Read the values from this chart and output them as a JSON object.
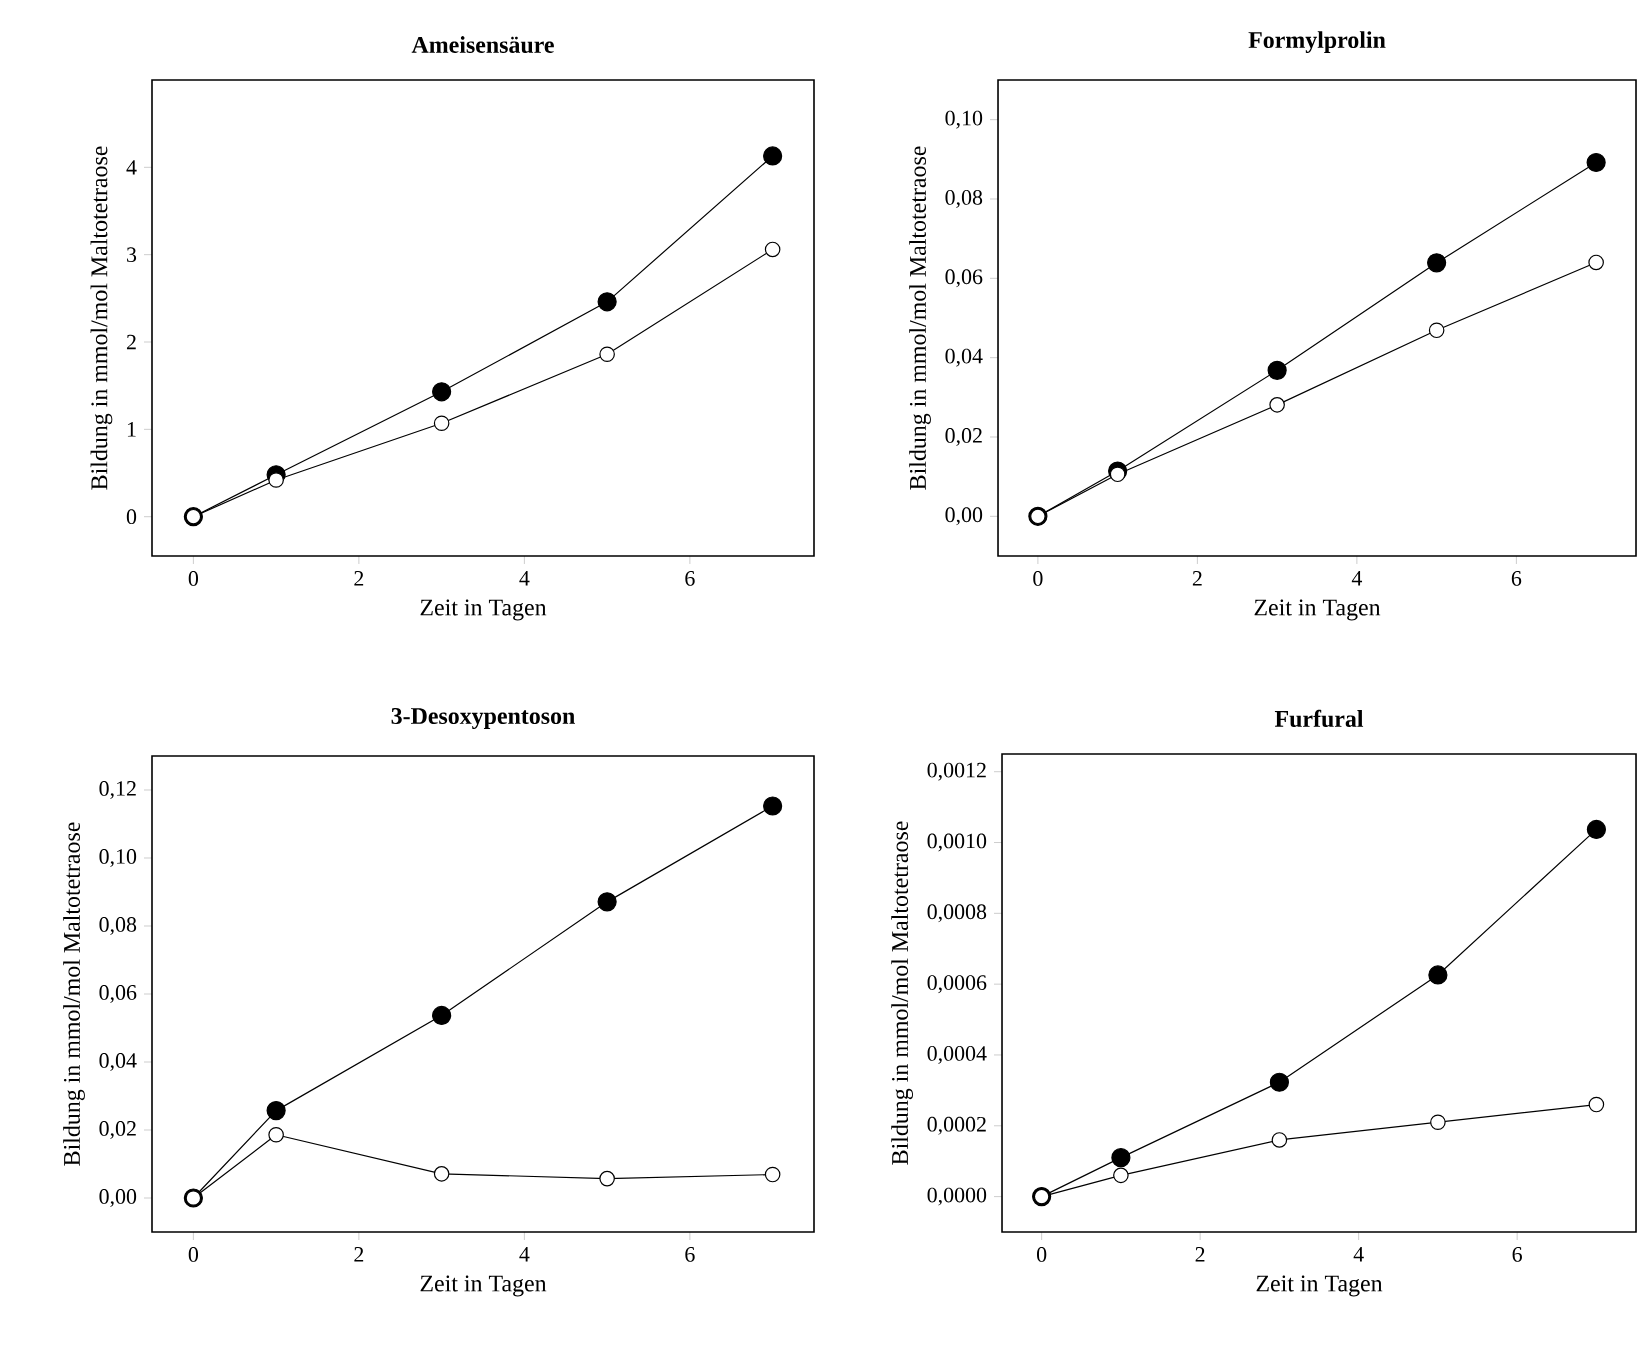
{
  "chart_data": [
    {
      "type": "line",
      "title": "Ameisensäure",
      "xlabel": "Zeit in Tagen",
      "ylabel": "Bildung in mmol/mol Maltotetraose",
      "x": [
        0,
        1,
        3,
        5,
        7
      ],
      "marker": "circle",
      "line_style": "solid",
      "series": [
        {
          "color": "#000000",
          "values": [
            0,
            0.48,
            1.43,
            2.46,
            4.13
          ]
        },
        {
          "color": "#ffffff",
          "values": [
            0,
            0.42,
            1.07,
            1.86,
            3.06
          ]
        }
      ],
      "xlim": [
        -0.5,
        7.5
      ],
      "ylim": [
        -0.45,
        5.0
      ],
      "xticks": [
        0,
        2,
        4,
        6
      ],
      "yticks": [
        0,
        1,
        2,
        3,
        4
      ]
    },
    {
      "type": "line",
      "title": "Formylprolin",
      "xlabel": "Zeit in Tagen",
      "ylabel": "Bildung in mmol/mol Maltotetraose",
      "x": [
        0,
        1,
        3,
        5,
        7
      ],
      "marker": "circle",
      "line_style": "solid",
      "series": [
        {
          "color": "#000000",
          "values": [
            0,
            0.0114,
            0.0368,
            0.0639,
            0.0892
          ]
        },
        {
          "color": "#ffffff",
          "values": [
            0,
            0.0106,
            0.0281,
            0.0469,
            0.064
          ]
        }
      ],
      "xlim": [
        -0.5,
        7.5
      ],
      "ylim": [
        -0.01,
        0.11
      ],
      "xticks": [
        0,
        2,
        4,
        6
      ],
      "yticks": [
        {
          "value": 0,
          "label": "0,00"
        },
        {
          "value": 0.02,
          "label": "0,02"
        },
        {
          "value": 0.04,
          "label": "0,04"
        },
        {
          "value": 0.06,
          "label": "0,06"
        },
        {
          "value": 0.08,
          "label": "0,08"
        },
        {
          "value": 0.1,
          "label": "0,10"
        }
      ]
    },
    {
      "type": "line",
      "title": "3-Desoxypentoson",
      "xlabel": "Zeit in Tagen",
      "ylabel": "Bildung in mmol/mol Maltotetraose",
      "x": [
        0,
        1,
        3,
        5,
        7
      ],
      "marker": "circle",
      "line_style": "solid",
      "series": [
        {
          "color": "#000000",
          "values": [
            0,
            0.0257,
            0.0537,
            0.0871,
            0.1153
          ]
        },
        {
          "color": "#ffffff",
          "values": [
            0,
            0.0186,
            0.0071,
            0.0057,
            0.0069
          ]
        }
      ],
      "xlim": [
        -0.5,
        7.5
      ],
      "ylim": [
        -0.01,
        0.13
      ],
      "xticks": [
        0,
        2,
        4,
        6
      ],
      "yticks": [
        {
          "value": 0,
          "label": "0,00"
        },
        {
          "value": 0.02,
          "label": "0,02"
        },
        {
          "value": 0.04,
          "label": "0,04"
        },
        {
          "value": 0.06,
          "label": "0,06"
        },
        {
          "value": 0.08,
          "label": "0,08"
        },
        {
          "value": 0.1,
          "label": "0,10"
        },
        {
          "value": 0.12,
          "label": "0,12"
        }
      ]
    },
    {
      "type": "line",
      "title": "Furfural",
      "xlabel": "Zeit in Tagen",
      "ylabel": "Bildung in mmol/mol Maltotetraose",
      "x": [
        0,
        1,
        3,
        5,
        7
      ],
      "marker": "circle",
      "line_style": "solid",
      "series": [
        {
          "color": "#000000",
          "values": [
            0,
            0.00011,
            0.000323,
            0.000626,
            0.001037
          ]
        },
        {
          "color": "#ffffff",
          "values": [
            0,
            6e-05,
            0.00016,
            0.00021,
            0.00026
          ]
        }
      ],
      "xlim": [
        -0.5,
        7.5
      ],
      "ylim": [
        -0.0001,
        0.00125
      ],
      "xticks": [
        0,
        2,
        4,
        6
      ],
      "yticks": [
        {
          "value": 0,
          "label": "0,0000"
        },
        {
          "value": 0.0002,
          "label": "0,0002"
        },
        {
          "value": 0.0004,
          "label": "0,0004"
        },
        {
          "value": 0.0006,
          "label": "0,0006"
        },
        {
          "value": 0.0008,
          "label": "0,0008"
        },
        {
          "value": 0.001,
          "label": "0,0010"
        },
        {
          "value": 0.0012,
          "label": "0,0012"
        }
      ]
    }
  ]
}
